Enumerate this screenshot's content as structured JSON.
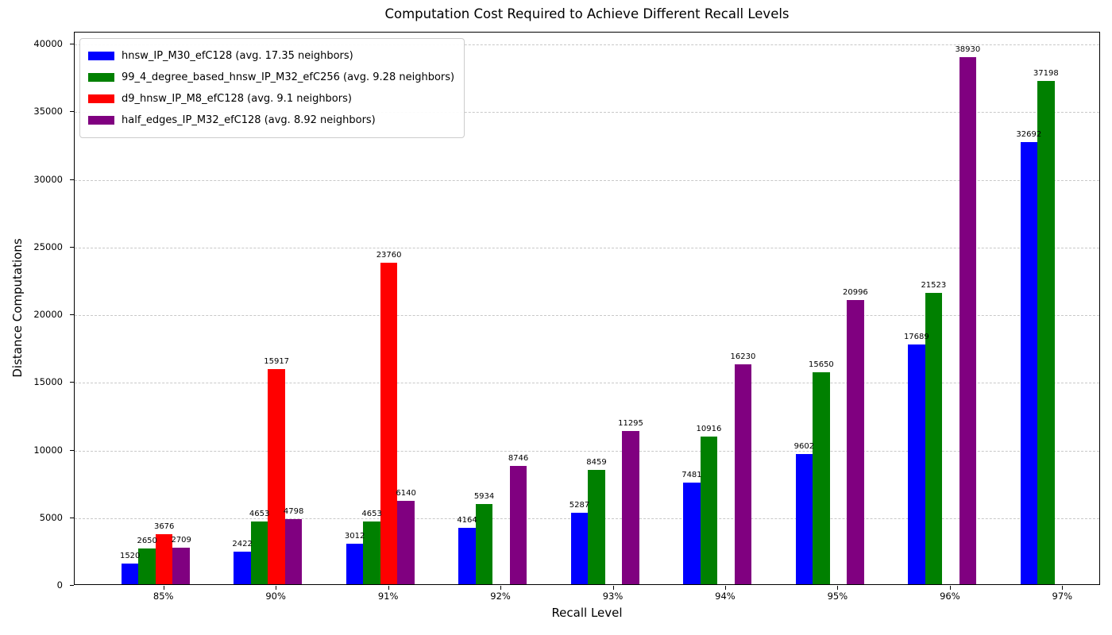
{
  "chart_data": {
    "type": "bar",
    "title": "Computation Cost Required to Achieve Different Recall Levels",
    "xlabel": "Recall Level",
    "ylabel": "Distance Computations",
    "categories": [
      "85%",
      "90%",
      "91%",
      "92%",
      "93%",
      "94%",
      "95%",
      "96%",
      "97%"
    ],
    "series": [
      {
        "name": "hnsw_IP_M30_efC128 (avg. 17.35 neighbors)",
        "color": "#0000ff",
        "values": [
          1520,
          2422,
          3012,
          4164,
          5287,
          7481,
          9602,
          17689,
          32692
        ]
      },
      {
        "name": "99_4_degree_based_hnsw_IP_M32_efC256 (avg. 9.28 neighbors)",
        "color": "#008000",
        "values": [
          2650,
          4653,
          4653,
          5934,
          8459,
          10916,
          15650,
          21523,
          37198
        ]
      },
      {
        "name": "d9_hnsw_IP_M8_efC128 (avg. 9.1 neighbors)",
        "color": "#ff0000",
        "values": [
          3676,
          15917,
          23760,
          null,
          null,
          null,
          null,
          null,
          null
        ]
      },
      {
        "name": "half_edges_IP_M32_efC128 (avg. 8.92 neighbors)",
        "color": "#800080",
        "values": [
          2709,
          4798,
          6140,
          8746,
          11295,
          16230,
          20996,
          38930,
          null
        ]
      }
    ],
    "yticks": [
      0,
      5000,
      10000,
      15000,
      20000,
      25000,
      30000,
      35000,
      40000
    ],
    "ylim": [
      0,
      40880
    ],
    "grid": "horizontal-dashed",
    "legend_position": "upper-left",
    "bar_value_labels": true
  }
}
